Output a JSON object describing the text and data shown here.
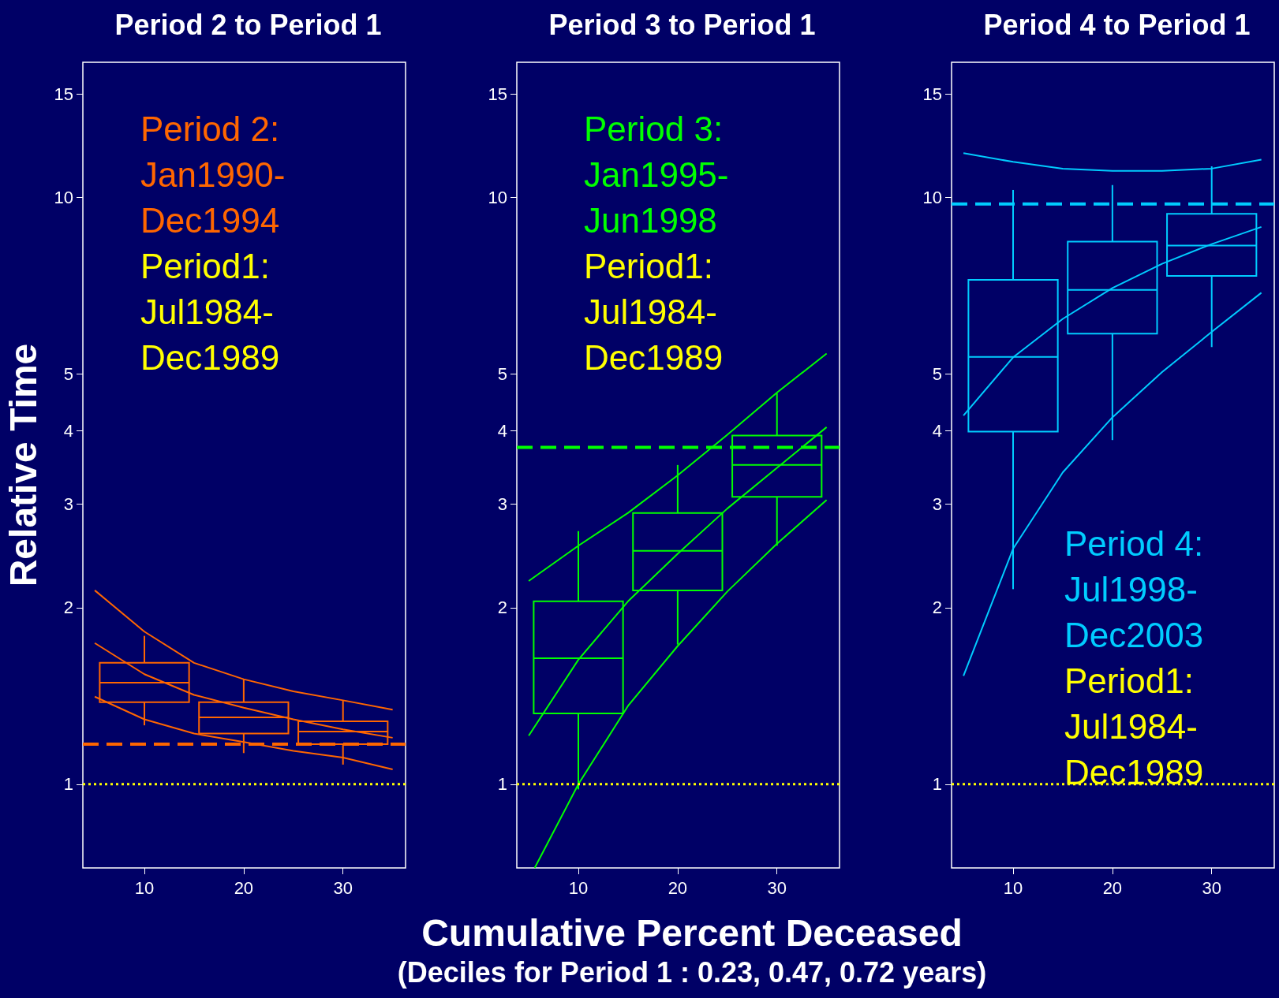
{
  "chart_data": [
    {
      "type": "box",
      "title": "Period 2 to Period 1",
      "ylabel": "Relative Time",
      "log": true,
      "xlim": [
        3.8,
        36.3
      ],
      "xticks": [
        10,
        20,
        30
      ],
      "ylim": [
        0.72,
        17
      ],
      "yticks": [
        1,
        2,
        3,
        4,
        5,
        10,
        15
      ],
      "annotations": [
        "Period 2:\nJan1990-\nDec1994",
        "Period1:\nJul1984-\nDec1989"
      ],
      "series": [
        {
          "type": "box",
          "color": "#ff6600",
          "x": [
            10,
            20,
            30
          ],
          "boxes": [
            {
              "low": 1.26,
              "q1": 1.38,
              "median": 1.49,
              "q3": 1.61,
              "high": 1.79
            },
            {
              "low": 1.13,
              "q1": 1.22,
              "median": 1.3,
              "q3": 1.38,
              "high": 1.51
            },
            {
              "low": 1.08,
              "q1": 1.17,
              "median": 1.23,
              "q3": 1.28,
              "high": 1.39
            }
          ]
        },
        {
          "type": "line",
          "color": "#ff6600",
          "x": [
            5,
            10,
            15,
            20,
            25,
            30,
            35
          ],
          "values": [
            2.14,
            1.82,
            1.61,
            1.51,
            1.44,
            1.39,
            1.34
          ]
        },
        {
          "type": "line",
          "color": "#ff6600",
          "x": [
            5,
            10,
            15,
            20,
            25,
            30,
            35
          ],
          "values": [
            1.74,
            1.54,
            1.42,
            1.35,
            1.29,
            1.24,
            1.2
          ]
        },
        {
          "type": "line",
          "color": "#ff6600",
          "x": [
            5,
            10,
            15,
            20,
            25,
            30,
            35
          ],
          "values": [
            1.41,
            1.29,
            1.22,
            1.18,
            1.14,
            1.11,
            1.06
          ]
        }
      ],
      "ref_lines": [
        {
          "axis": "y",
          "value": 1.17,
          "color": "#ff6600",
          "line_style": "dashed"
        },
        {
          "axis": "y",
          "value": 1,
          "color": "#ffff00",
          "line_style": "dotted"
        }
      ]
    },
    {
      "type": "box",
      "title": "Period 3 to Period 1",
      "xlabel": "Cumulative Percent Deceased",
      "log": true,
      "xlim": [
        3.8,
        36.3
      ],
      "xticks": [
        10,
        20,
        30
      ],
      "ylim": [
        0.72,
        17
      ],
      "yticks": [
        1,
        2,
        3,
        4,
        5,
        10,
        15
      ],
      "annotations": [
        "Period 3:\nJan1995-\nJun1998",
        "Period1:\nJul1984-\nDec1989",
        "(Deciles for Period 1 : 0.23, 0.47, 0.72 years)"
      ],
      "series": [
        {
          "type": "box",
          "color": "#00ff00",
          "x": [
            10,
            20,
            30
          ],
          "boxes": [
            {
              "low": 0.98,
              "q1": 1.32,
              "median": 1.64,
              "q3": 2.05,
              "high": 2.7
            },
            {
              "low": 1.73,
              "q1": 2.14,
              "median": 2.5,
              "q3": 2.9,
              "high": 3.5
            },
            {
              "low": 2.55,
              "q1": 3.09,
              "median": 3.5,
              "q3": 3.93,
              "high": 4.64
            }
          ]
        },
        {
          "type": "line",
          "color": "#00ff00",
          "x": [
            5,
            10,
            15,
            20,
            25,
            30,
            35
          ],
          "values": [
            2.22,
            2.55,
            2.9,
            3.36,
            3.94,
            4.65,
            5.42
          ]
        },
        {
          "type": "line",
          "color": "#00ff00",
          "x": [
            5,
            10,
            15,
            20,
            25,
            30,
            35
          ],
          "values": [
            1.21,
            1.63,
            2.05,
            2.47,
            2.95,
            3.46,
            4.06
          ]
        },
        {
          "type": "line",
          "color": "#00ff00",
          "x": [
            5.6,
            10,
            15,
            20,
            25,
            30,
            35
          ],
          "values": [
            0.72,
            1.0,
            1.36,
            1.72,
            2.13,
            2.57,
            3.05
          ]
        }
      ],
      "ref_lines": [
        {
          "axis": "y",
          "value": 3.75,
          "color": "#00ff00",
          "line_style": "dashed"
        },
        {
          "axis": "y",
          "value": 1,
          "color": "#ffff00",
          "line_style": "dotted"
        }
      ]
    },
    {
      "type": "box",
      "title": "Period 4 to Period 1",
      "log": true,
      "xlim": [
        3.8,
        36.3
      ],
      "xticks": [
        10,
        20,
        30
      ],
      "ylim": [
        0.72,
        17
      ],
      "yticks": [
        1,
        2,
        3,
        4,
        5,
        10,
        15
      ],
      "annotations": [
        "Period 4:\nJul1998-\nDec2003",
        "Period1:\nJul1984-\nDec1989"
      ],
      "series": [
        {
          "type": "box",
          "color": "#00ccff",
          "x": [
            10,
            20,
            30
          ],
          "boxes": [
            {
              "low": 2.15,
              "q1": 3.99,
              "median": 5.35,
              "q3": 7.24,
              "high": 10.3
            },
            {
              "low": 3.86,
              "q1": 5.86,
              "median": 6.96,
              "q3": 8.41,
              "high": 10.5
            },
            {
              "low": 5.56,
              "q1": 7.35,
              "median": 8.28,
              "q3": 9.38,
              "high": 11.3
            }
          ]
        },
        {
          "type": "line",
          "color": "#00ccff",
          "x": [
            5,
            10,
            15,
            20,
            25,
            30,
            35
          ],
          "values": [
            11.9,
            11.5,
            11.2,
            11.1,
            11.1,
            11.2,
            11.6
          ]
        },
        {
          "type": "line",
          "color": "#00ccff",
          "x": [
            5,
            10,
            15,
            20,
            25,
            30,
            35
          ],
          "values": [
            4.25,
            5.34,
            6.21,
            7.01,
            7.71,
            8.33,
            8.91
          ]
        },
        {
          "type": "line",
          "color": "#00ccff",
          "x": [
            5,
            10,
            15,
            20,
            25,
            30,
            35
          ],
          "values": [
            1.53,
            2.52,
            3.4,
            4.22,
            5.04,
            5.9,
            6.88
          ]
        }
      ],
      "ref_lines": [
        {
          "axis": "y",
          "value": 9.75,
          "color": "#00ccff",
          "line_style": "dashed"
        },
        {
          "axis": "y",
          "value": 1,
          "color": "#ffff00",
          "line_style": "dotted"
        }
      ]
    }
  ]
}
